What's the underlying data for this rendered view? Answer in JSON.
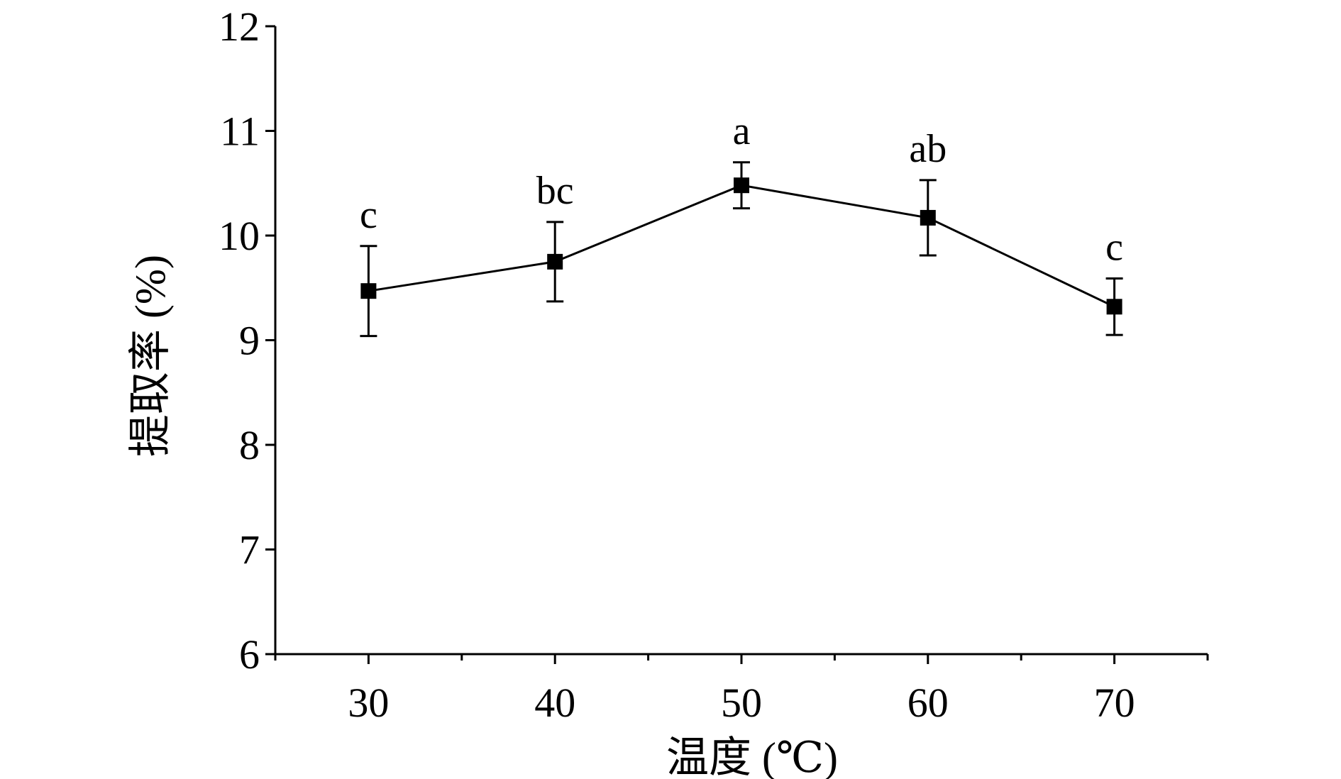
{
  "chart_data": {
    "type": "line",
    "title": "",
    "xlabel": "温度 (℃)",
    "ylabel": "提取率 (%)",
    "xlim": [
      25,
      75
    ],
    "ylim": [
      6,
      12
    ],
    "x_ticks": [
      30,
      40,
      50,
      60,
      70
    ],
    "x_minor_ticks": [
      25,
      35,
      45,
      55,
      65,
      75
    ],
    "y_ticks": [
      6,
      7,
      8,
      9,
      10,
      11,
      12
    ],
    "grid": false,
    "legend": "none",
    "series": [
      {
        "color": "#000000",
        "marker": "square",
        "x": [
          30,
          40,
          50,
          60,
          70
        ],
        "y": [
          9.47,
          9.75,
          10.48,
          10.17,
          9.32
        ],
        "error": [
          0.43,
          0.38,
          0.22,
          0.36,
          0.27
        ],
        "annotations": [
          "c",
          "bc",
          "a",
          "ab",
          "c"
        ]
      }
    ]
  }
}
